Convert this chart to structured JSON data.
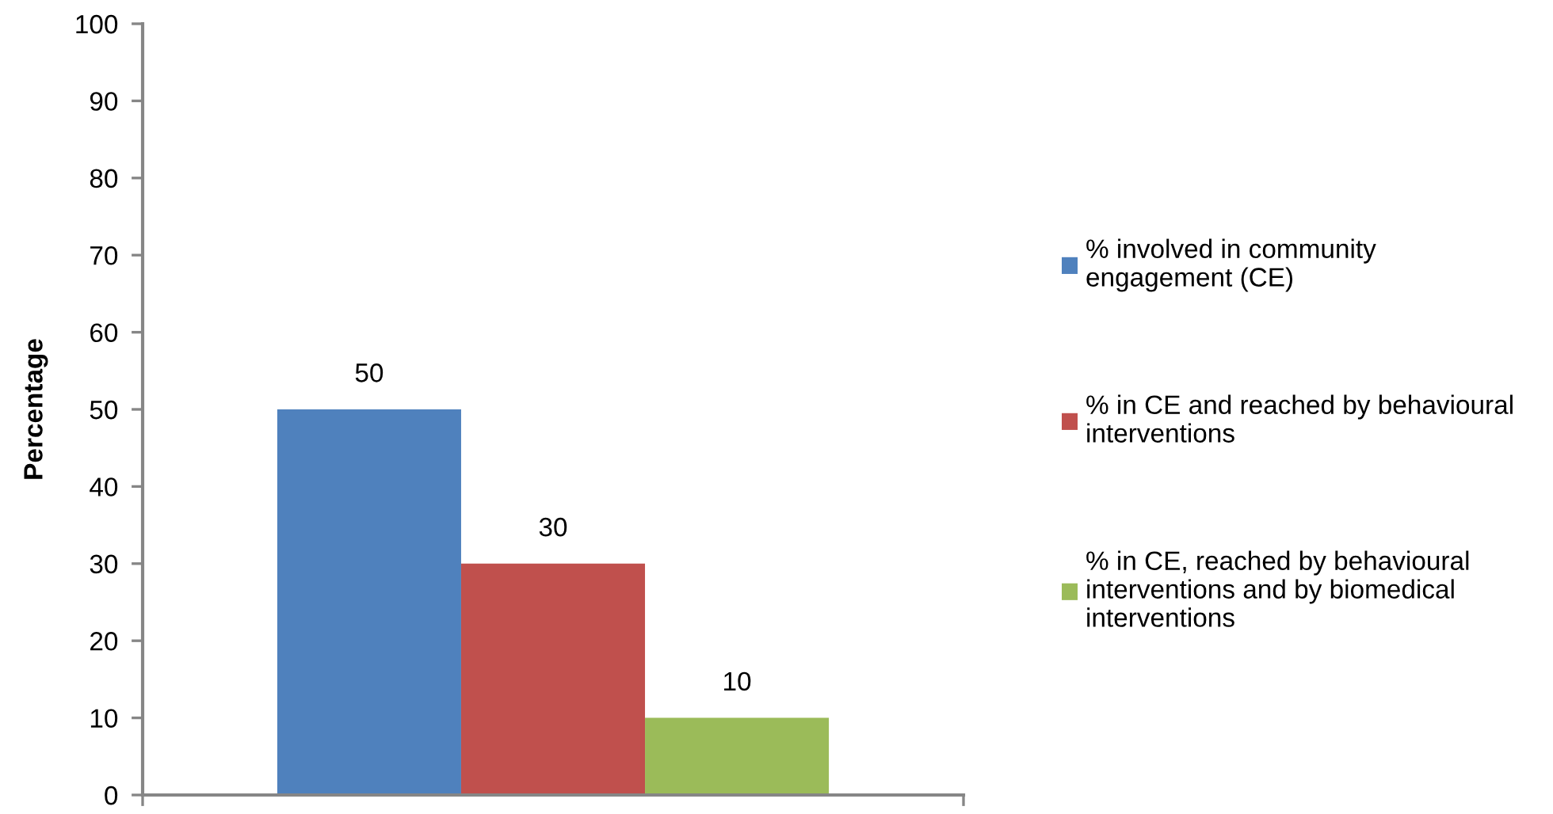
{
  "chart_data": {
    "type": "bar",
    "ylabel": "Percentage",
    "categories": [
      null
    ],
    "series": [
      {
        "name": "% involved in community engagement (CE)",
        "color": "#4f81bd",
        "values": [
          50
        ]
      },
      {
        "name": "% in CE and reached by behavioural interventions",
        "color": "#c0504d",
        "values": [
          30
        ]
      },
      {
        "name": "% in CE, reached by behavioural interventions and by biomedical interventions",
        "color": "#9bbb59",
        "values": [
          10
        ]
      }
    ],
    "ylim": [
      0,
      100
    ],
    "yticks": [
      0,
      10,
      20,
      30,
      40,
      50,
      60,
      70,
      80,
      90,
      100
    ],
    "legend": "right",
    "data_labels": true
  }
}
